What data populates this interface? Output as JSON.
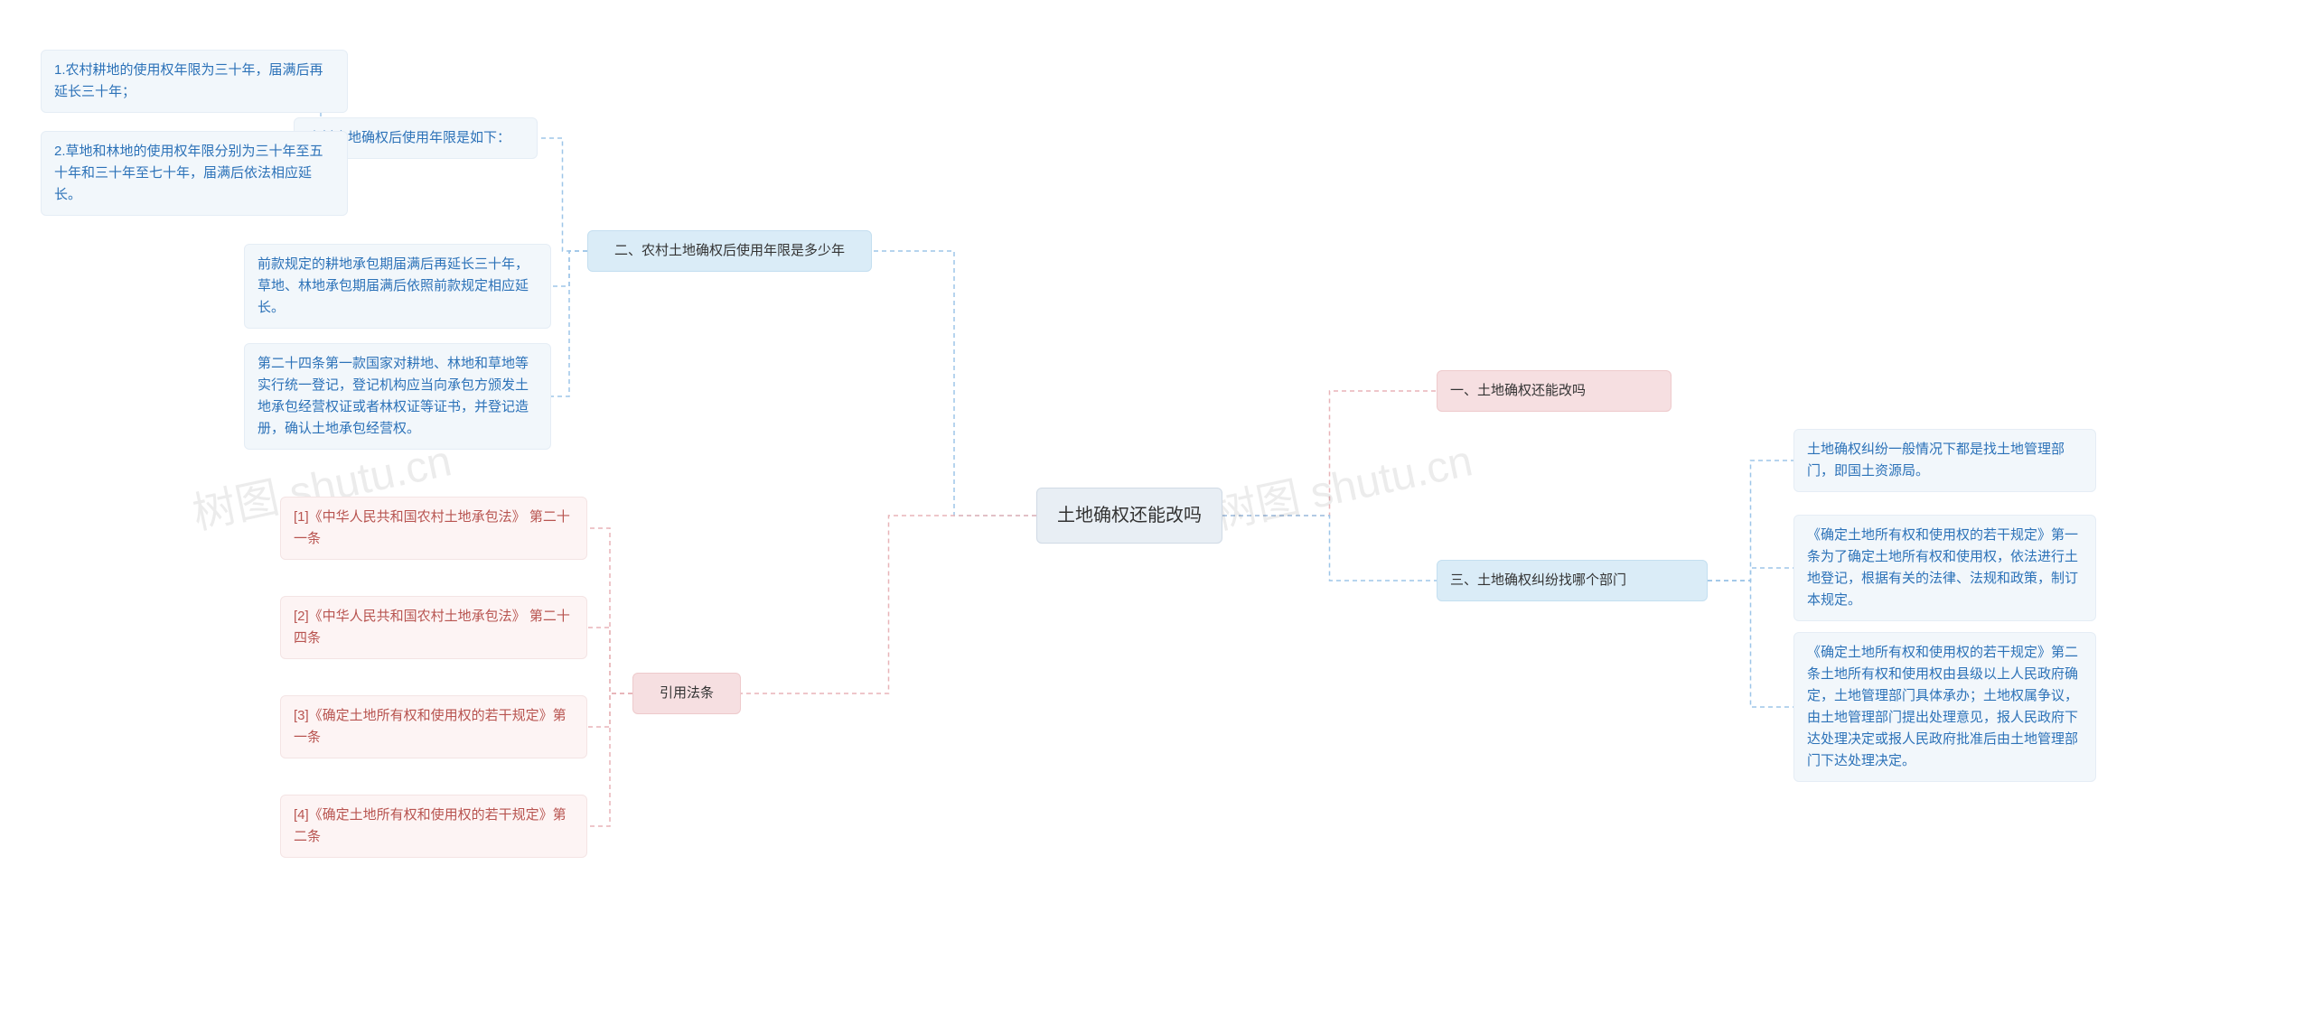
{
  "root": {
    "label": "土地确权还能改吗"
  },
  "right": {
    "n1": {
      "label": "一、土地确权还能改吗"
    },
    "n3": {
      "label": "三、土地确权纠纷找哪个部门"
    },
    "n3_children": [
      "土地确权纠纷一般情况下都是找土地管理部门，即国土资源局。",
      "《确定土地所有权和使用权的若干规定》第一条为了确定土地所有权和使用权，依法进行土地登记，根据有关的法律、法规和政策，制订本规定。",
      "《确定土地所有权和使用权的若干规定》第二条土地所有权和使用权由县级以上人民政府确定，土地管理部门具体承办；土地权属争议，由土地管理部门提出处理意见，报人民政府下达处理决定或报人民政府批准后由土地管理部门下达处理决定。"
    ]
  },
  "left": {
    "n2": {
      "label": "二、农村土地确权后使用年限是多少年"
    },
    "n2_sub": {
      "label": "农村土地确权后使用年限是如下："
    },
    "n2_sub_children": [
      "1.农村耕地的使用权年限为三十年，届满后再延长三十年；",
      "2.草地和林地的使用权年限分别为三十年至五十年和三十年至七十年，届满后依法相应延长。"
    ],
    "n2_children": [
      "前款规定的耕地承包期届满后再延长三十年，草地、林地承包期届满后依照前款规定相应延长。",
      "第二十四条第一款国家对耕地、林地和草地等实行统一登记，登记机构应当向承包方颁发土地承包经营权证或者林权证等证书，并登记造册，确认土地承包经营权。"
    ],
    "cite": {
      "label": "引用法条"
    },
    "cite_children": [
      "[1]《中华人民共和国农村土地承包法》 第二十一条",
      "[2]《中华人民共和国农村土地承包法》 第二十四条",
      "[3]《确定土地所有权和使用权的若干规定》第一条",
      "[4]《确定土地所有权和使用权的若干规定》第二条"
    ]
  },
  "colors": {
    "root_bg": "#e8eef4",
    "blue_bg": "#daecf7",
    "pink_bg": "#f6dfe1",
    "leaf_blue_bg": "#f2f7fb",
    "leaf_red_bg": "#fdf4f4",
    "leaf_blue_text": "#2c72b8",
    "leaf_red_text": "#b85450",
    "conn_blue": "#9dc5e8",
    "conn_pink": "#e8b4b8"
  },
  "watermark": "树图 shutu.cn"
}
